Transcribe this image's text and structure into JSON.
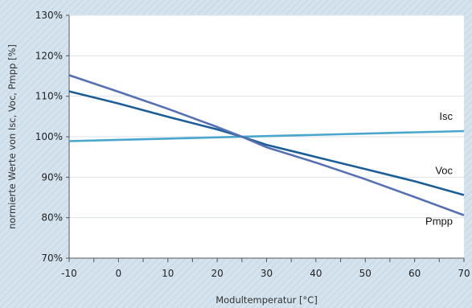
{
  "chart_data": {
    "type": "line",
    "xlabel": "Modultemperatur [°C]",
    "ylabel": "normierte Werte von Isc, Voc, Pmpp [%]",
    "xlim": [
      -10,
      70
    ],
    "ylim": [
      70,
      130
    ],
    "x_ticks": [
      -10,
      0,
      10,
      20,
      30,
      40,
      50,
      60,
      70
    ],
    "x_tick_labels": [
      "-10",
      "0",
      "10",
      "20",
      "30",
      "40",
      "50",
      "60",
      "70"
    ],
    "y_ticks": [
      70,
      80,
      90,
      100,
      110,
      120,
      130
    ],
    "y_tick_labels": [
      "70%",
      "80%",
      "90%",
      "100%",
      "110%",
      "120%",
      "130%"
    ],
    "grid": "horizontal",
    "background": "light blue-grey hatched",
    "series": [
      {
        "name": "Isc",
        "color": "#4aa6cc",
        "x": [
          -10,
          70
        ],
        "y": [
          98.9,
          101.4
        ]
      },
      {
        "name": "Voc",
        "color": "#1c5e98",
        "x": [
          -10,
          0,
          10,
          20,
          25,
          30,
          40,
          50,
          60,
          70
        ],
        "y": [
          111.2,
          108.2,
          104.9,
          101.8,
          100,
          98.0,
          95.0,
          92.0,
          89.0,
          85.6
        ]
      },
      {
        "name": "Pmpp",
        "color": "#5570b4",
        "x": [
          -10,
          0,
          10,
          20,
          25,
          30,
          40,
          50,
          60,
          70
        ],
        "y": [
          115.2,
          111.1,
          106.9,
          102.4,
          100,
          97.4,
          93.6,
          89.5,
          85.1,
          80.6
        ]
      }
    ]
  },
  "colors": {
    "plot_background": "#ffffff",
    "page_background": "#d5e3ee",
    "axis_line": "#555555",
    "grid_line": "#dde3e8"
  }
}
